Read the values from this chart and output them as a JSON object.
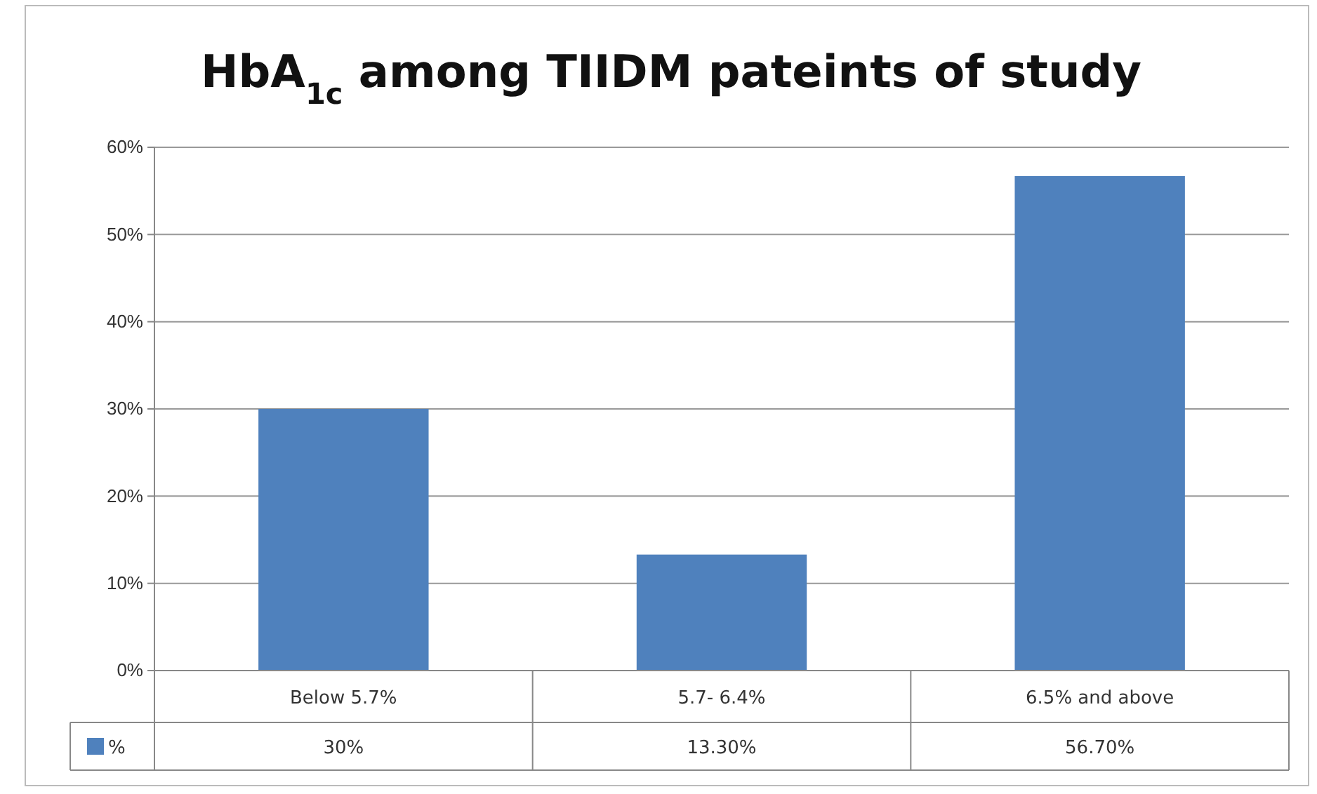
{
  "chart_data": {
    "type": "bar",
    "title": "HbA$_{1c}$ among TIIDM pateints of study",
    "categories": [
      "Below 5.7%",
      "5.7- 6.4%",
      "6.5% and above"
    ],
    "series": [
      {
        "name": "%",
        "color": "#4f81bd",
        "values": [
          30,
          13.3,
          56.7
        ],
        "value_labels": [
          "30%",
          "13.30%",
          "56.70%"
        ]
      }
    ],
    "ylim": [
      0,
      60
    ],
    "yticks": [
      {
        "value": 0,
        "label": "0%"
      },
      {
        "value": 10,
        "label": "10%"
      },
      {
        "value": 20,
        "label": "20%"
      },
      {
        "value": 30,
        "label": "30%"
      },
      {
        "value": 40,
        "label": "40%"
      },
      {
        "value": 50,
        "label": "50%"
      },
      {
        "value": 60,
        "label": "60%"
      }
    ],
    "grid": "y",
    "legend": "bottom left"
  }
}
